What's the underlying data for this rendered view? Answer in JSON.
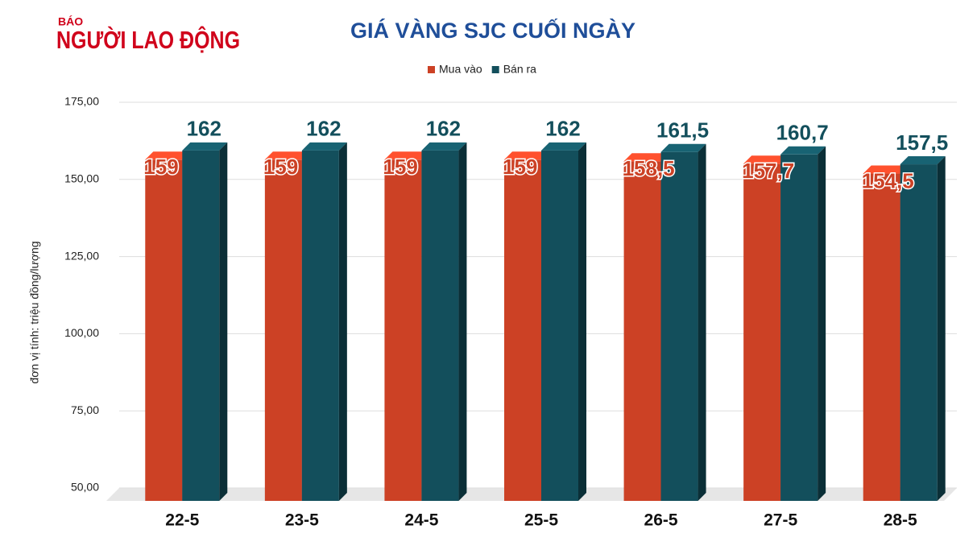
{
  "chart_data": {
    "type": "bar3d",
    "brand": {
      "small": "BÁO",
      "name": "NGƯỜI LAO ĐỘNG"
    },
    "title": "GIÁ VÀNG SJC CUỐI NGÀY",
    "y_label": "đơn vị tính: triệu đồng/lượng",
    "categories": [
      "22-5",
      "23-5",
      "24-5",
      "25-5",
      "26-5",
      "27-5",
      "28-5"
    ],
    "series": [
      {
        "name": "Mua vào",
        "color": "#cc4125",
        "values": [
          159,
          159,
          159,
          159,
          158.5,
          157.7,
          154.5
        ],
        "value_labels": [
          "159",
          "159",
          "159",
          "159",
          "158,5",
          "157,7",
          "154,5"
        ]
      },
      {
        "name": "Bán ra",
        "color": "#134f5c",
        "values": [
          162,
          162,
          162,
          162,
          161.5,
          160.7,
          157.5
        ],
        "value_labels": [
          "162",
          "162",
          "162",
          "162",
          "161,5",
          "160,7",
          "157,5"
        ]
      }
    ],
    "ylim": [
      50,
      175
    ],
    "yticks": [
      {
        "value": 50,
        "label": "50,00"
      },
      {
        "value": 75,
        "label": "75,00"
      },
      {
        "value": 100,
        "label": "100,00"
      },
      {
        "value": 125,
        "label": "125,00"
      },
      {
        "value": 150,
        "label": "150,00"
      },
      {
        "value": 175,
        "label": "175,00"
      }
    ],
    "grid": true,
    "legend": "top"
  }
}
